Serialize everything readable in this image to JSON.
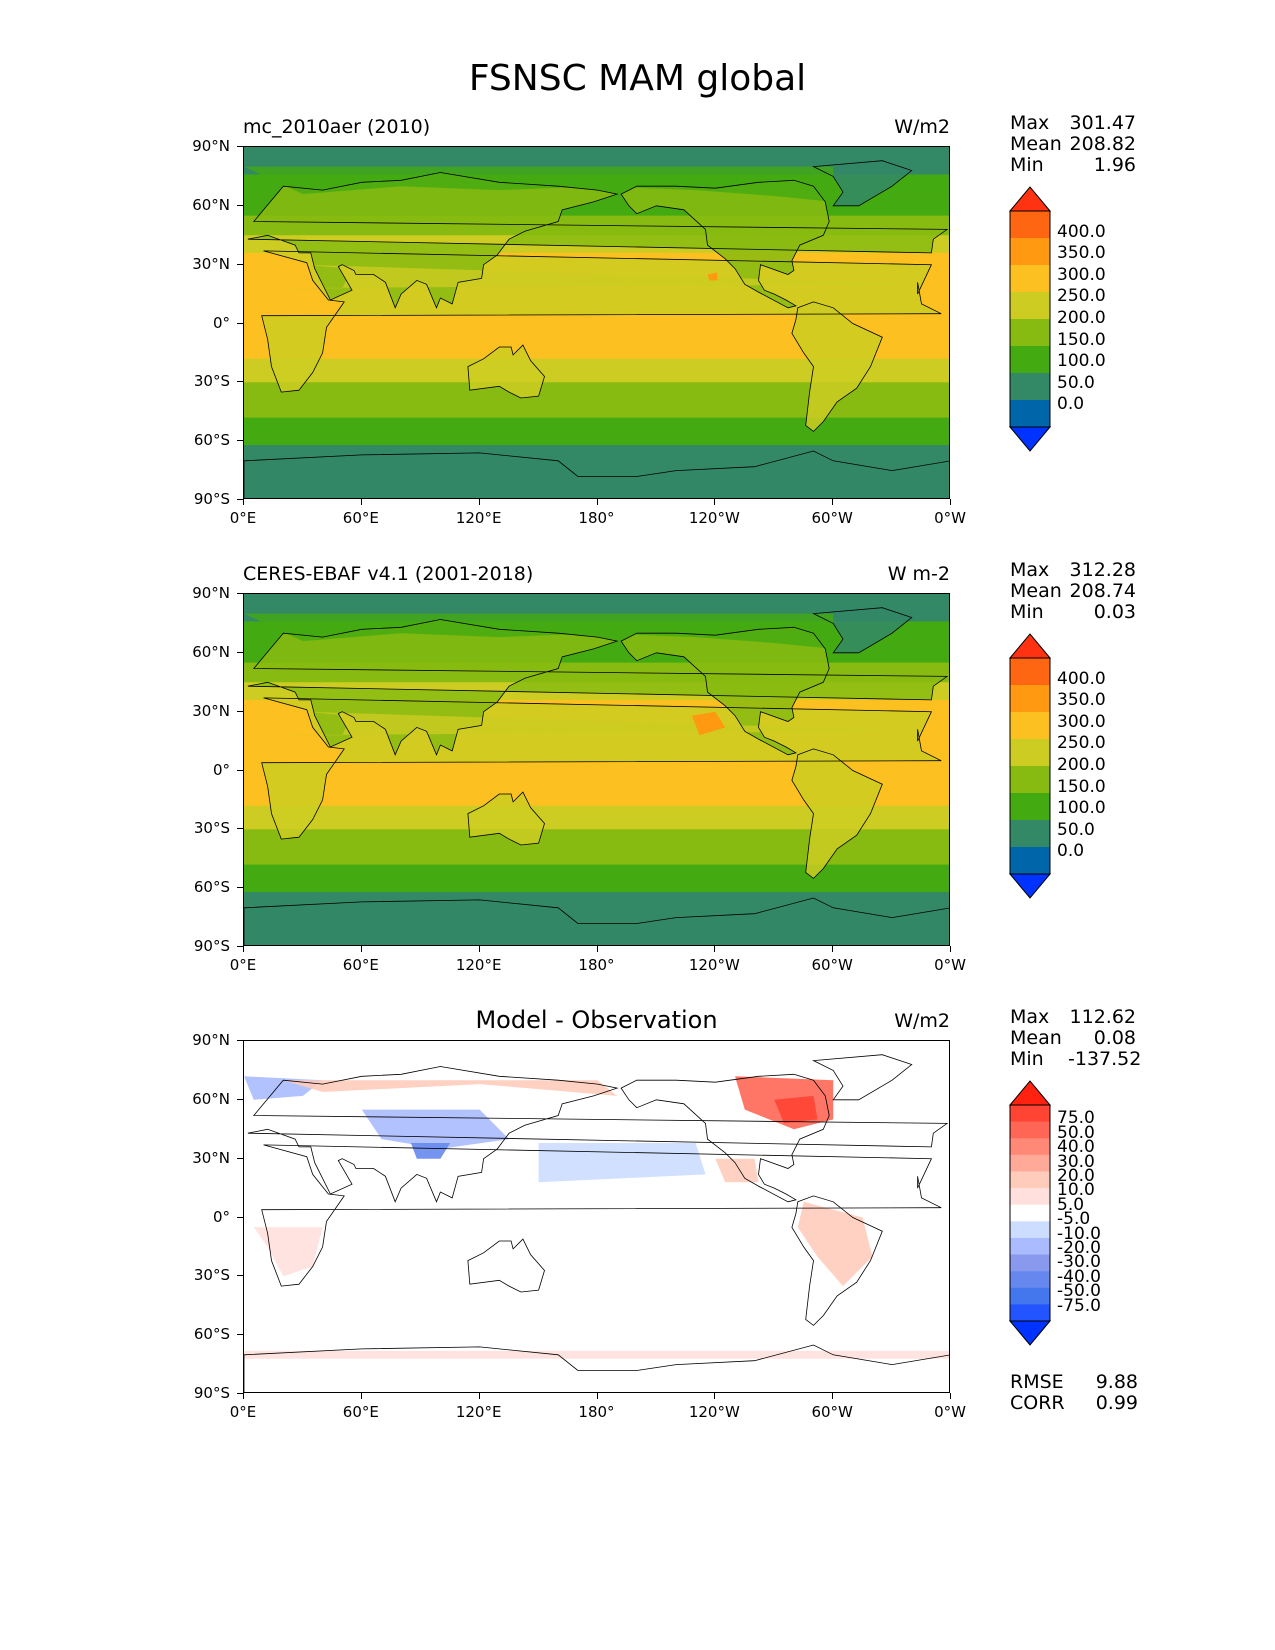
{
  "title": "FSNSC MAM global",
  "lon_ticks": [
    "0°E",
    "60°E",
    "120°E",
    "180°",
    "120°W",
    "60°W",
    "0°W"
  ],
  "lat_ticks": [
    "90°N",
    "60°N",
    "30°N",
    "0°",
    "30°S",
    "60°S",
    "90°S"
  ],
  "panels": [
    {
      "left_label": "mc_2010aer (2010)",
      "center_label": "",
      "units": "W/m2",
      "stats": [
        {
          "k": "Max",
          "v": "301.47"
        },
        {
          "k": "Mean",
          "v": "208.82"
        },
        {
          "k": "Min",
          "v": "1.96"
        }
      ],
      "colorbar_labels": [
        "400.0",
        "350.0",
        "300.0",
        "250.0",
        "200.0",
        "150.0",
        "100.0",
        "50.0",
        "0.0"
      ]
    },
    {
      "left_label": "CERES-EBAF v4.1 (2001-2018)",
      "center_label": "",
      "units": "W m-2",
      "stats": [
        {
          "k": "Max",
          "v": "312.28"
        },
        {
          "k": "Mean",
          "v": "208.74"
        },
        {
          "k": "Min",
          "v": "0.03"
        }
      ],
      "colorbar_labels": [
        "400.0",
        "350.0",
        "300.0",
        "250.0",
        "200.0",
        "150.0",
        "100.0",
        "50.0",
        "0.0"
      ]
    },
    {
      "left_label": "",
      "center_label": "Model - Observation",
      "units": "W/m2",
      "stats": [
        {
          "k": "Max",
          "v": "112.62"
        },
        {
          "k": "Mean",
          "v": "0.08"
        },
        {
          "k": "Min",
          "v": "-137.52"
        }
      ],
      "colorbar_labels": [
        "75.0",
        "50.0",
        "40.0",
        "30.0",
        "20.0",
        "10.0",
        "5.0",
        "-5.0",
        "-10.0",
        "-20.0",
        "-30.0",
        "-40.0",
        "-50.0",
        "-75.0"
      ],
      "footer_stats": [
        {
          "k": "RMSE",
          "v": "9.88"
        },
        {
          "k": "CORR",
          "v": "0.99"
        }
      ]
    }
  ],
  "colors": {
    "abs_scale": [
      "#0033ff",
      "#0066aa",
      "#338866",
      "#44aa11",
      "#88bb11",
      "#cccc22",
      "#fcc020",
      "#ff9911",
      "#ff6611",
      "#ff3311"
    ],
    "diff_scale": [
      "#0033ff",
      "#2255ff",
      "#4477ee",
      "#6688ee",
      "#8899ee",
      "#aabbff",
      "#ccddff",
      "#ffffff",
      "#ffe0dd",
      "#ffccbb",
      "#ffaa99",
      "#ff8877",
      "#ff6655",
      "#ff4433",
      "#ff2211"
    ]
  }
}
